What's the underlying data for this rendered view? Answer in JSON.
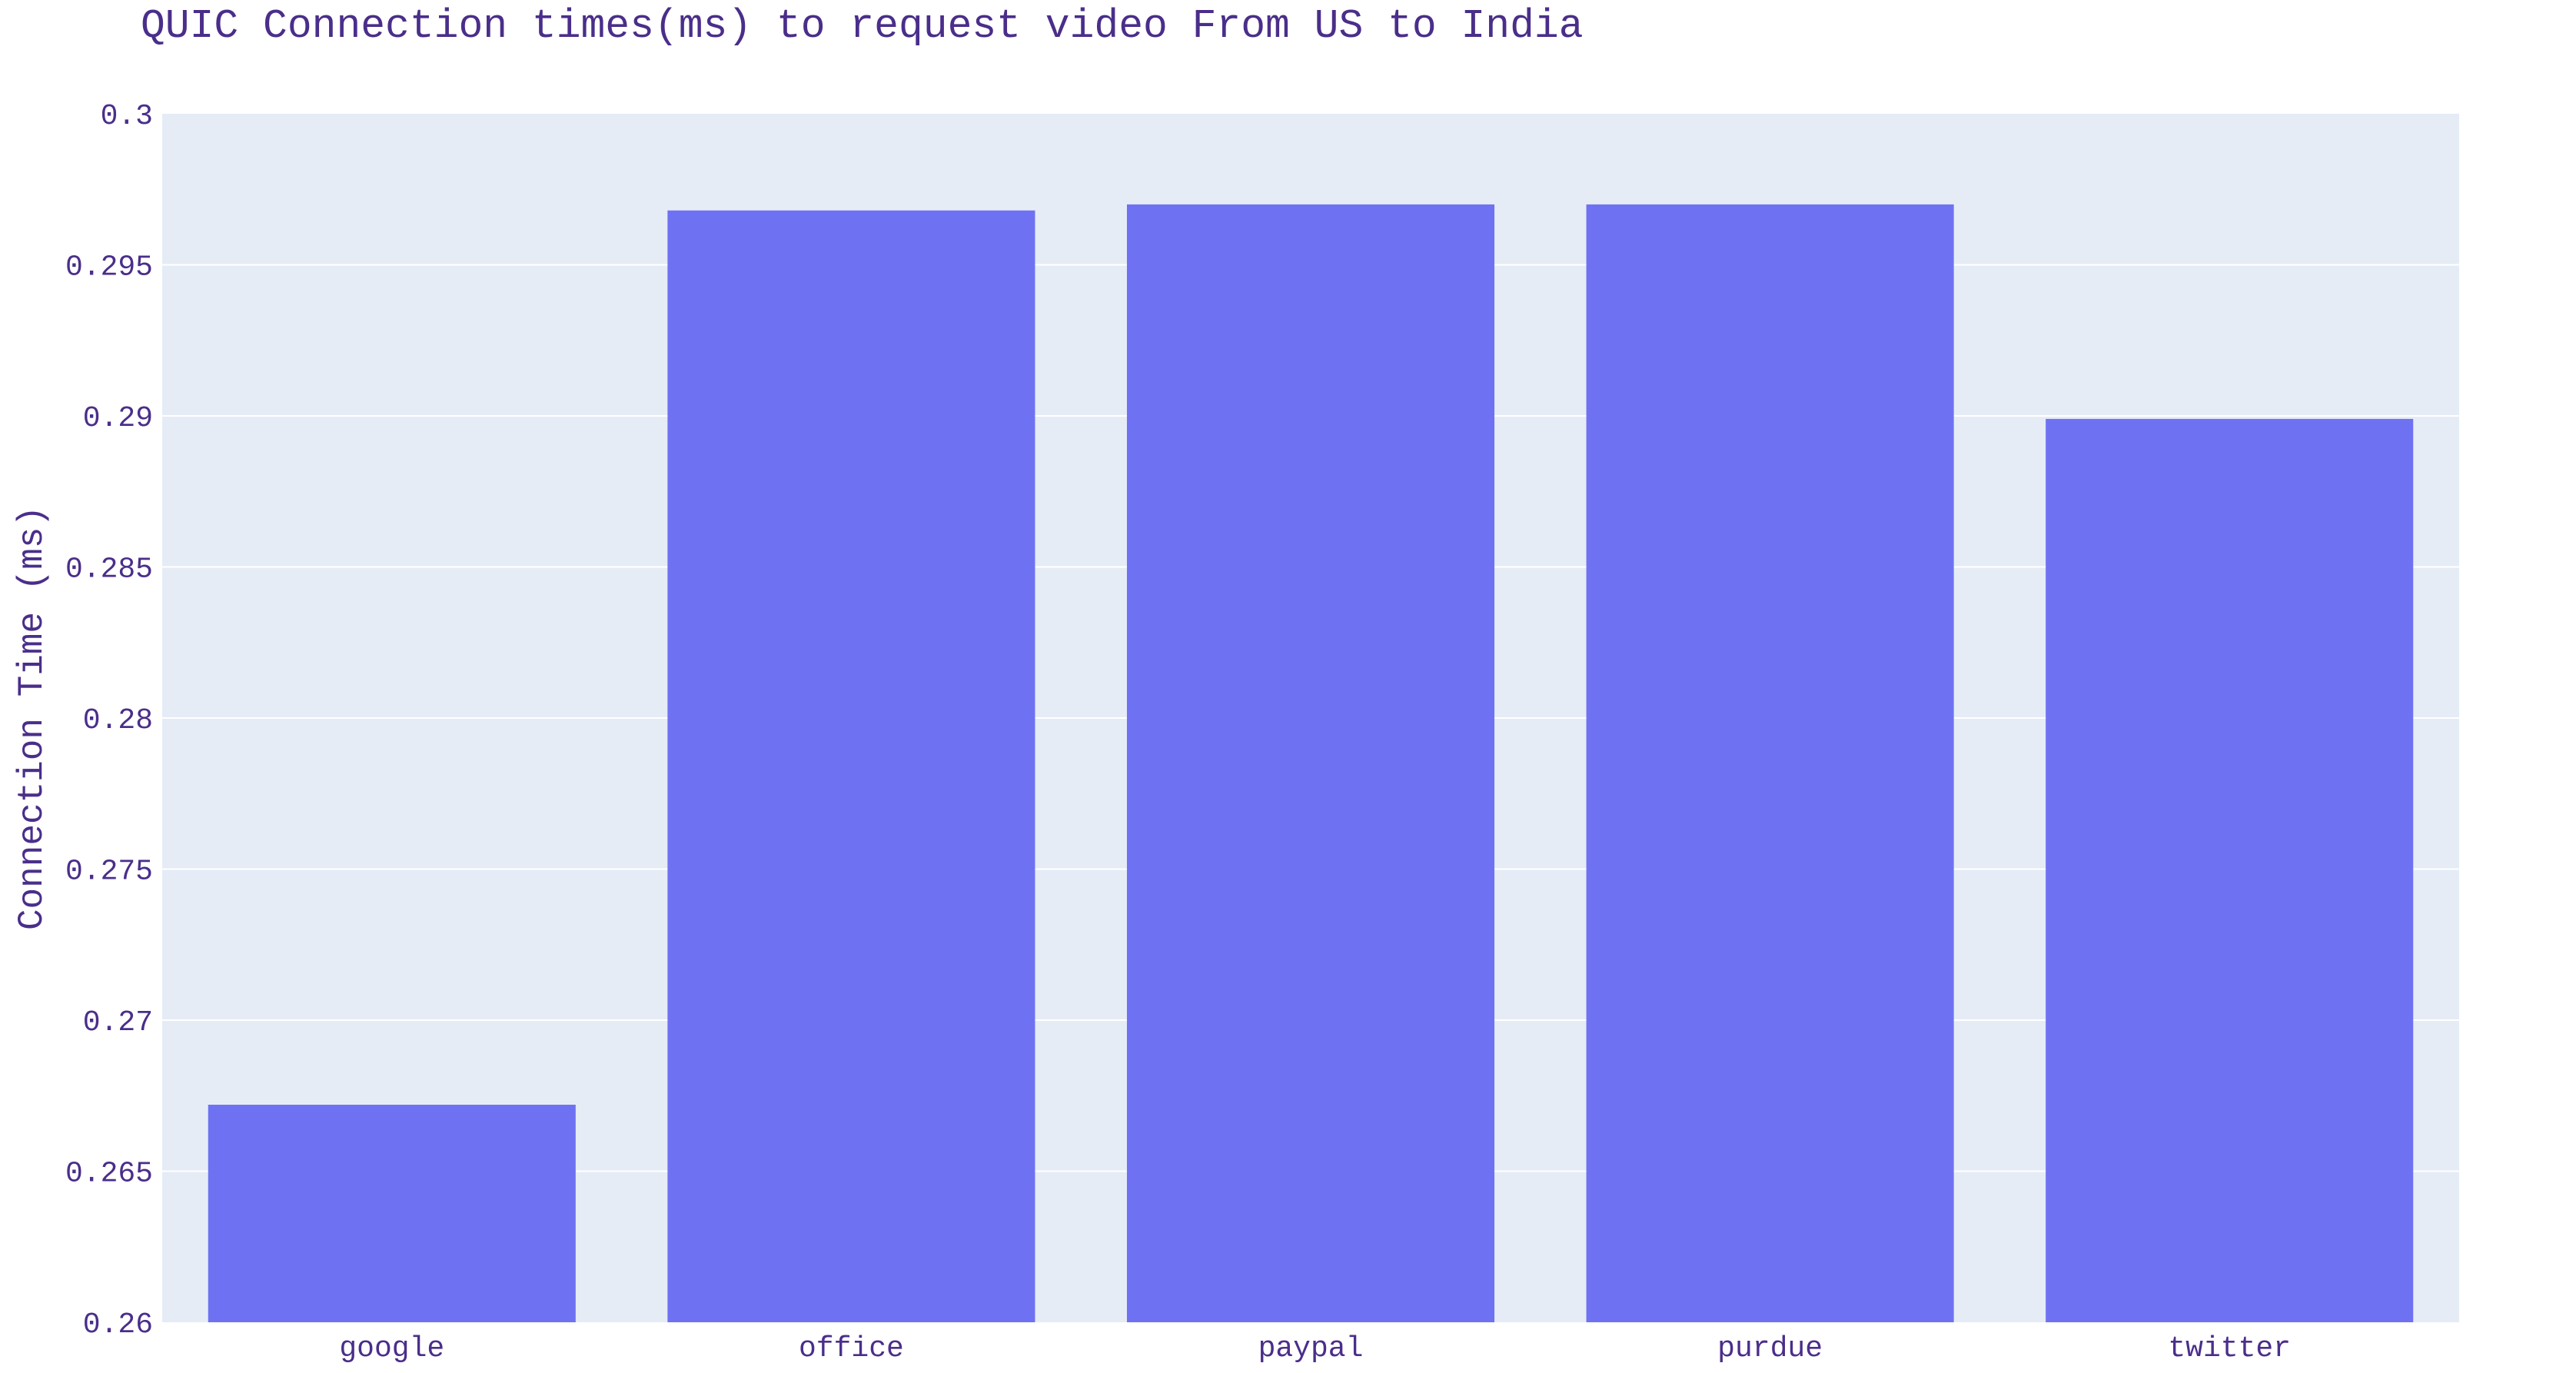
{
  "colors": {
    "plot_background": "#E5ECF6",
    "gridline": "#FFFFFF",
    "bar": "#6E72F2",
    "text": "#4A2E8A"
  },
  "chart_data": {
    "type": "bar",
    "title": "QUIC Connection times(ms) to request video From US to India",
    "xlabel": "",
    "ylabel": "Connection Time (ms)",
    "categories": [
      "google",
      "office",
      "paypal",
      "purdue",
      "twitter"
    ],
    "values": [
      0.2672,
      0.2968,
      0.297,
      0.297,
      0.2899
    ],
    "ylim": [
      0.26,
      0.3
    ],
    "yticks": [
      0.26,
      0.265,
      0.27,
      0.275,
      0.28,
      0.285,
      0.29,
      0.295,
      0.3
    ],
    "ytick_labels": [
      "0.26",
      "0.265",
      "0.27",
      "0.275",
      "0.28",
      "0.285",
      "0.29",
      "0.295",
      "0.3"
    ],
    "grid": true,
    "legend": "none"
  }
}
